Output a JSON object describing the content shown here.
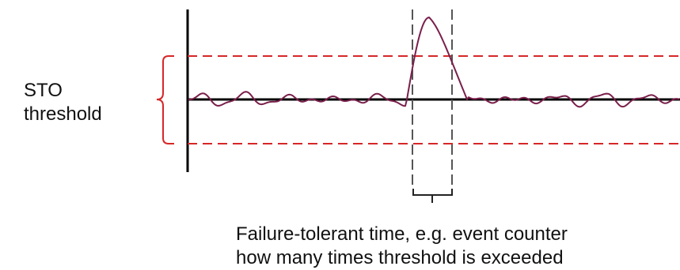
{
  "labels": {
    "sto_line1": "STO",
    "sto_line2": "threshold",
    "caption_line1": "Failure-tolerant time, e.g. event counter",
    "caption_line2": "how many times threshold is exceeded"
  },
  "colors": {
    "axis": "#000000",
    "threshold": "#d62728",
    "signal": "#7a1f4b",
    "window": "#555555",
    "text": "#111111"
  }
}
